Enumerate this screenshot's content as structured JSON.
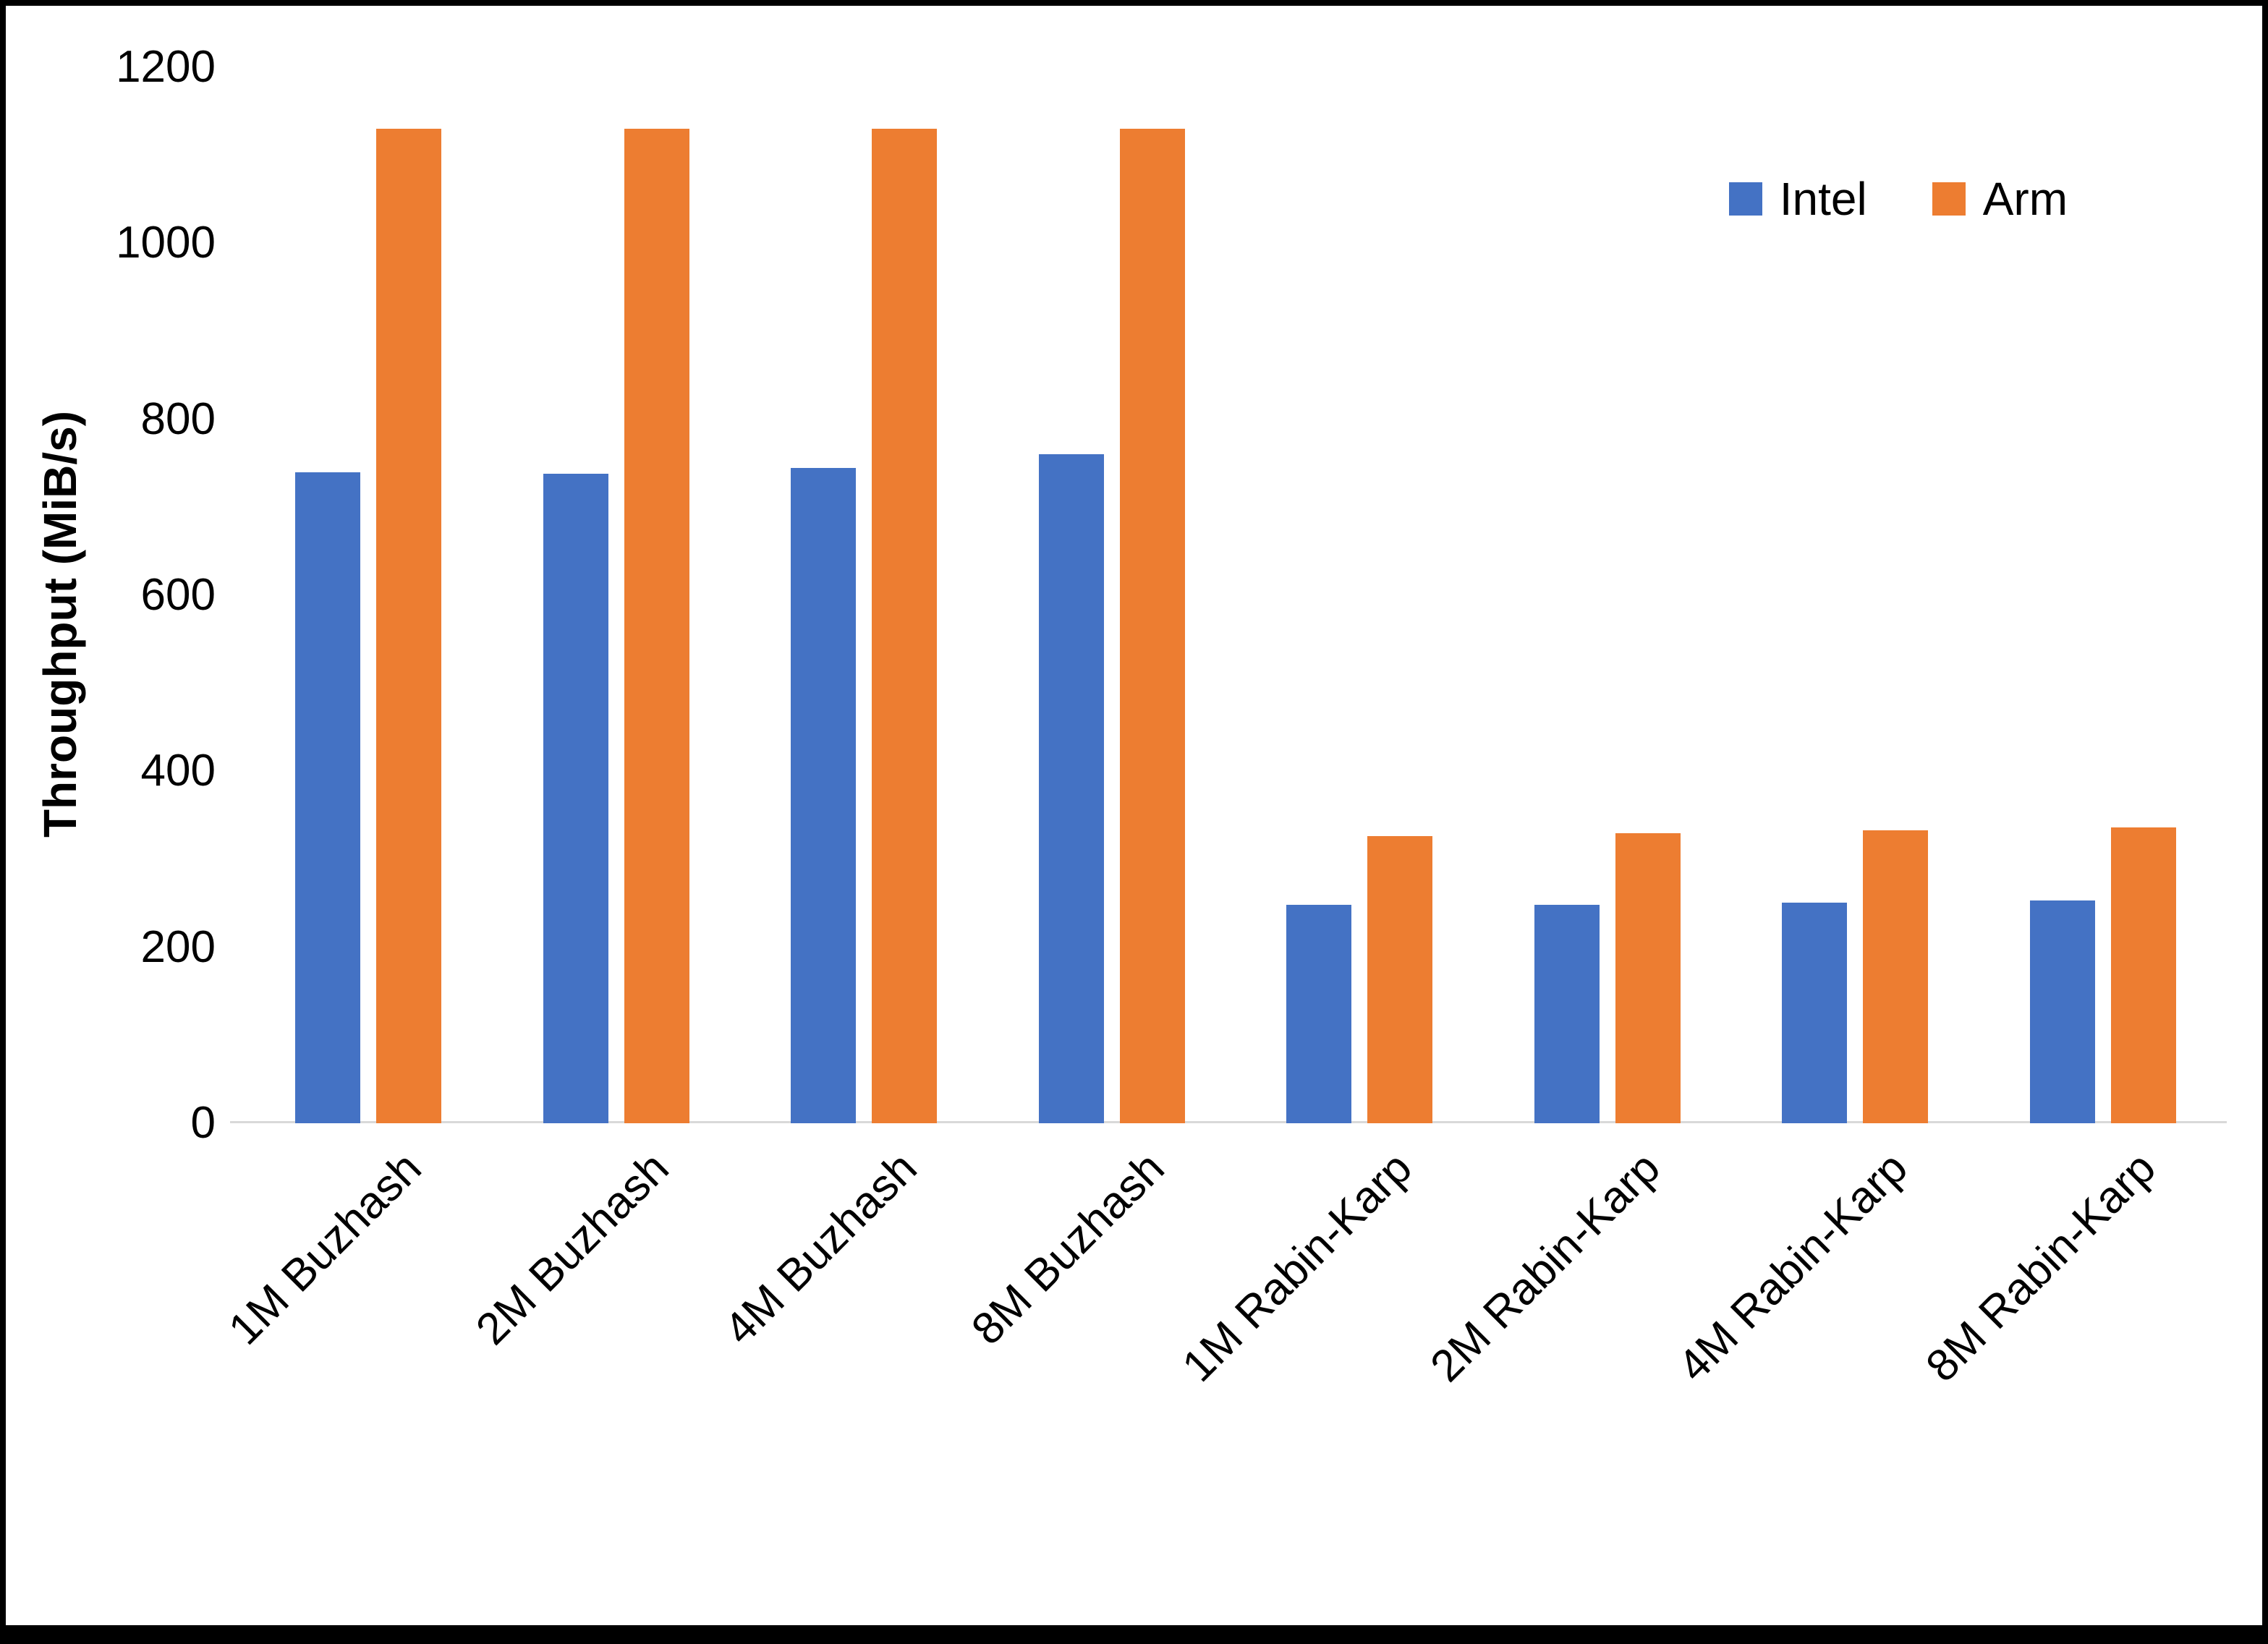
{
  "chart_data": {
    "type": "bar",
    "title": "",
    "xlabel": "",
    "ylabel": "Throughput (MiB/s)",
    "ylim": [
      0,
      1200
    ],
    "yticks": [
      0,
      200,
      400,
      600,
      800,
      1000,
      1200
    ],
    "grid": false,
    "legend_position": "top-right",
    "categories": [
      "1M Buzhash",
      "2M Buzhash",
      "4M Buzhash",
      "8M Buzhash",
      "1M Rabin-Karp",
      "2M Rabin-Karp",
      "4M Rabin-Karp",
      "8M Rabin-Karp"
    ],
    "series": [
      {
        "name": "Intel",
        "color": "#4472C4",
        "values": [
          740,
          738,
          745,
          760,
          248,
          248,
          251,
          253
        ]
      },
      {
        "name": "Arm",
        "color": "#ED7D31",
        "values": [
          1130,
          1130,
          1130,
          1130,
          326,
          330,
          333,
          336
        ]
      }
    ]
  }
}
